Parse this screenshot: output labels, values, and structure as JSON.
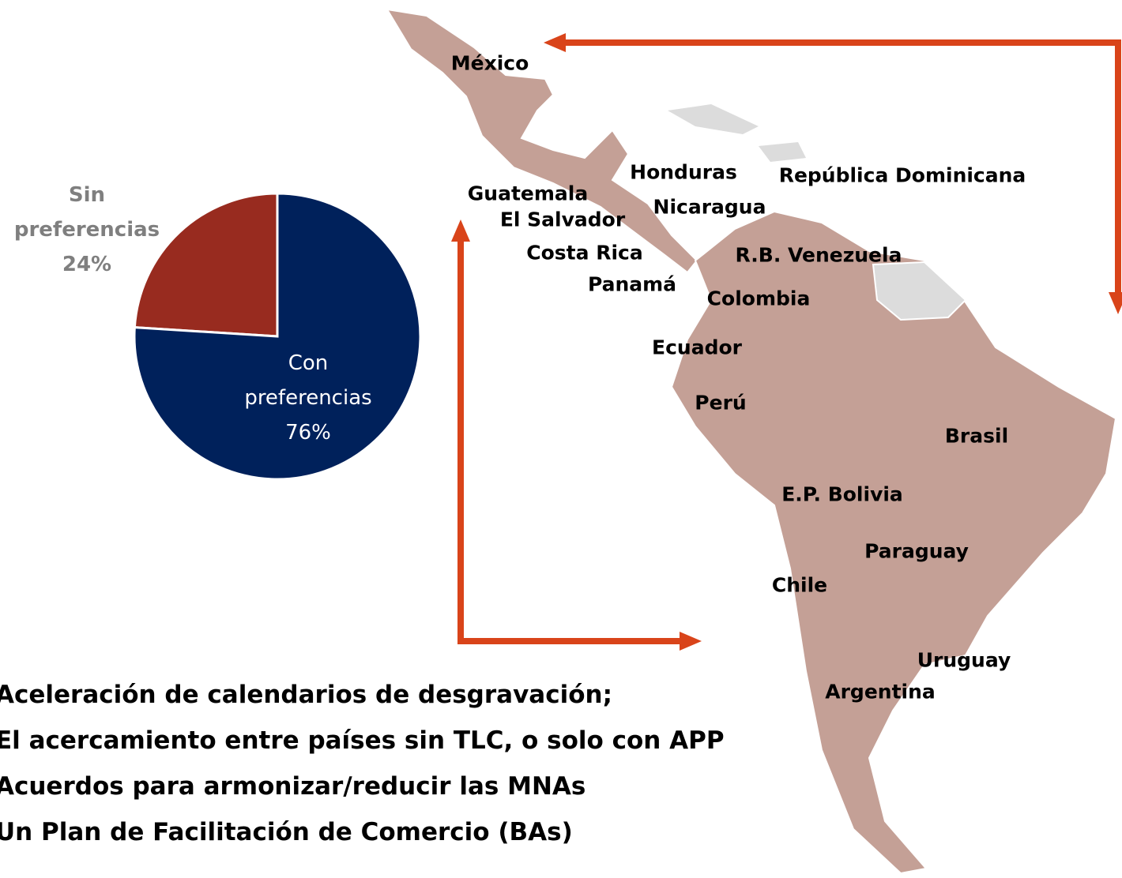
{
  "chart_data": {
    "type": "pie",
    "categories": [
      "Sin preferencias",
      "Con preferencias"
    ],
    "values": [
      24,
      76
    ],
    "value_labels": [
      "24%",
      "76%"
    ],
    "colors": [
      "#982b1f",
      "#00215b"
    ]
  },
  "map": {
    "labels": [
      "México",
      "Honduras",
      "República Dominicana",
      "Guatemala",
      "Nicaragua",
      "El Salvador",
      "Costa Rica",
      "R.B. Venezuela",
      "Panamá",
      "Colombia",
      "Ecuador",
      "Perú",
      "Brasil",
      "E.P. Bolivia",
      "Paraguay",
      "Chile",
      "Uruguay",
      "Argentina"
    ]
  },
  "bullets": [
    "Aceleración de calendarios de desgravación;",
    "El acercamiento entre países sin TLC, o solo con APP",
    "Acuerdos para armonizar/reducir las MNAs",
    "Un Plan de Facilitación de Comercio (BAs)"
  ]
}
